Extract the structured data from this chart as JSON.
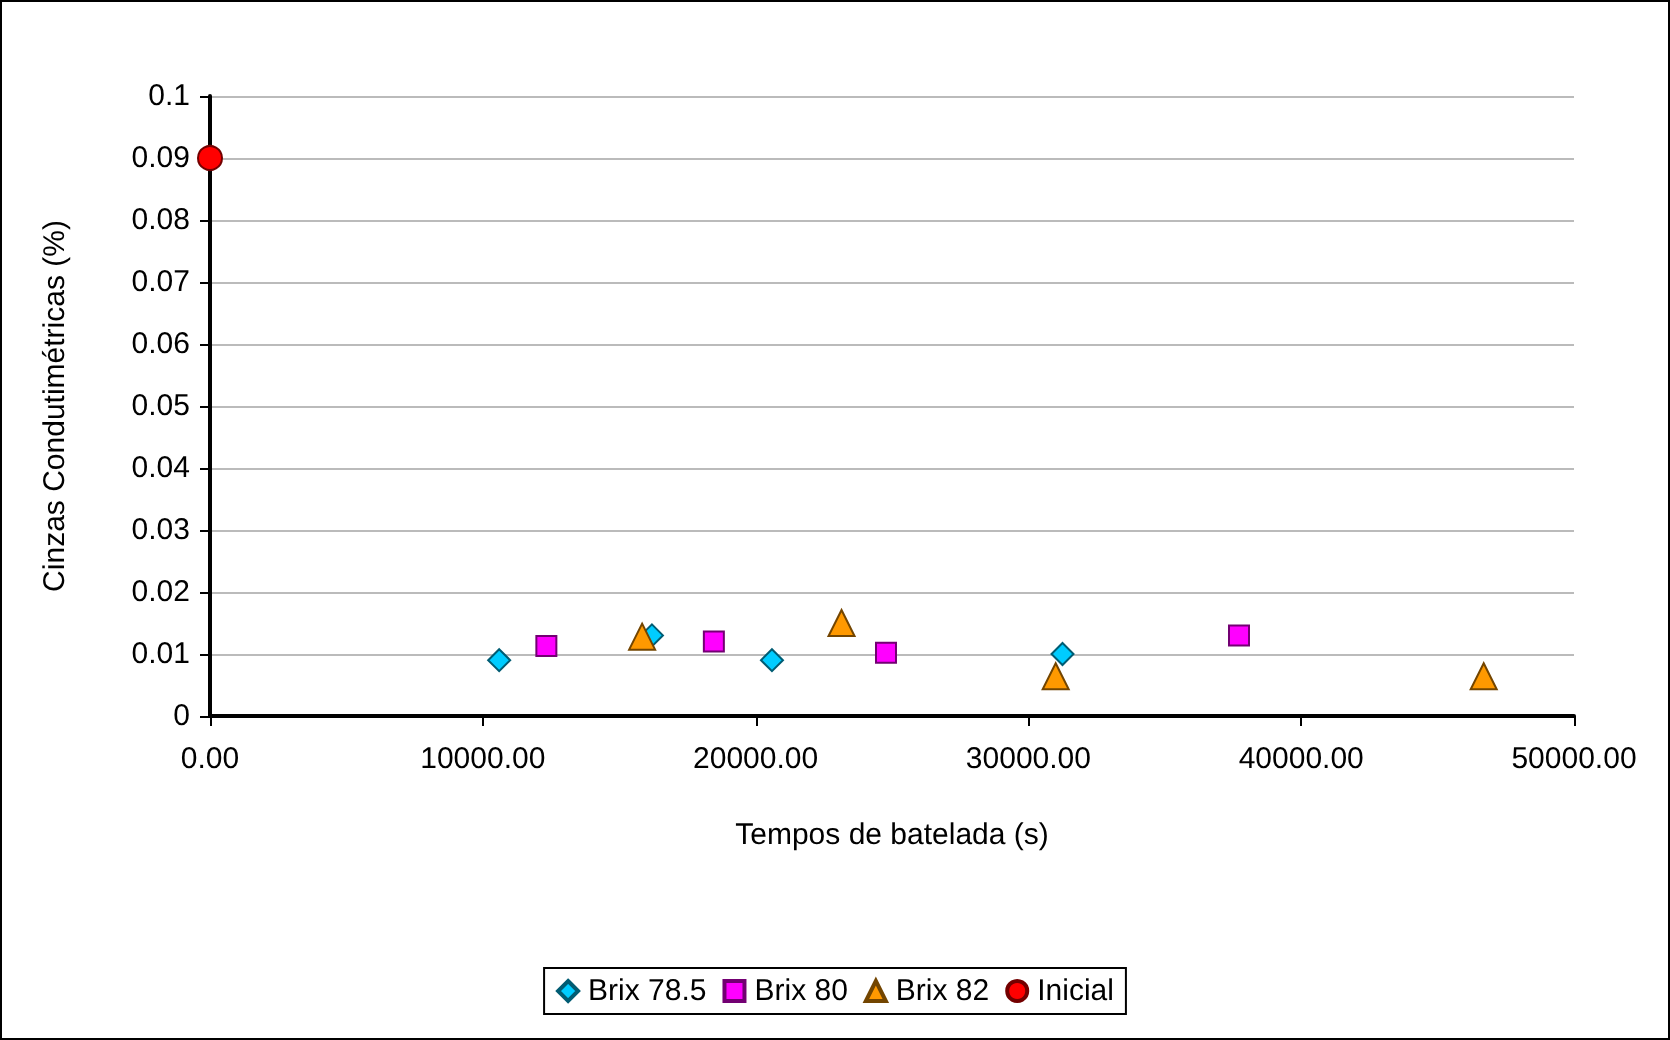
{
  "chart_data": {
    "type": "scatter",
    "xlabel": "Tempos de batelada (s)",
    "ylabel": "Cinzas Condutimétricas (%)",
    "xlim": [
      0,
      50000
    ],
    "xticks": [
      {
        "value": 0,
        "label": "0.00"
      },
      {
        "value": 10000,
        "label": "10000.00"
      },
      {
        "value": 20000,
        "label": "20000.00"
      },
      {
        "value": 30000,
        "label": "30000.00"
      },
      {
        "value": 40000,
        "label": "40000.00"
      },
      {
        "value": 50000,
        "label": "50000.00"
      }
    ],
    "ylim": [
      0,
      0.1
    ],
    "yticks": [
      0,
      0.01,
      0.02,
      0.03,
      0.04,
      0.05,
      0.06,
      0.07,
      0.08,
      0.09,
      0.1
    ],
    "grid": "y",
    "legend": "bottom",
    "series": [
      {
        "name": "Brix 78.5",
        "color": "#00ccff",
        "marker": "diamond",
        "x": [
          10600,
          16200,
          20600,
          31250
        ],
        "values": [
          0.009,
          0.013,
          0.009,
          0.01
        ]
      },
      {
        "name": "Brix 80",
        "color": "#ff00ff",
        "marker": "square",
        "x": [
          12330,
          18470,
          24780,
          37720
        ],
        "values": [
          0.0113,
          0.012,
          0.0102,
          0.013
        ]
      },
      {
        "name": "Brix 82",
        "color": "#ff9900",
        "marker": "triangle",
        "x": [
          15840,
          23150,
          31000,
          46690
        ],
        "values": [
          0.0128,
          0.015,
          0.0064,
          0.0064
        ]
      },
      {
        "name": "Inicial",
        "color": "#ff0000",
        "marker": "circle",
        "x": [
          0
        ],
        "values": [
          0.09
        ]
      }
    ]
  }
}
